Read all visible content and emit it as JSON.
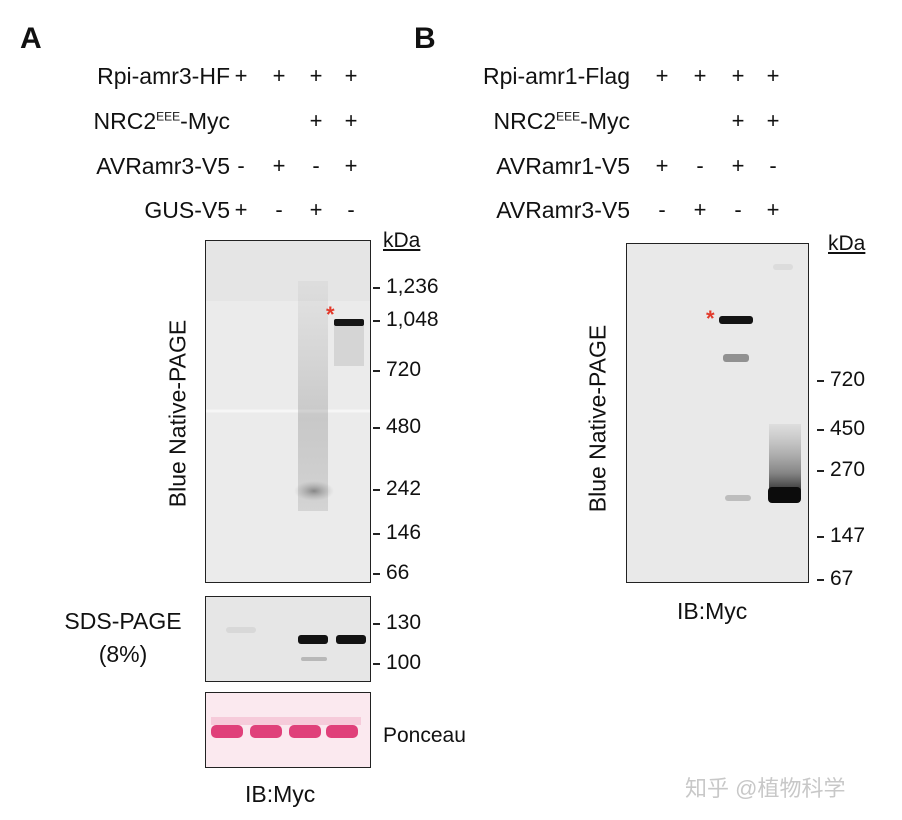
{
  "panelA": {
    "letter": "A",
    "rows": [
      {
        "label": "Rpi-amr3-HF",
        "signs": [
          "+",
          "+",
          "+",
          "+"
        ]
      },
      {
        "label_main": "NRC2",
        "label_sup": "EEE",
        "label_tail": "-Myc",
        "signs": [
          "",
          "",
          "+",
          "+"
        ]
      },
      {
        "label": "AVRamr3-V5",
        "signs": [
          "-",
          "+",
          "-",
          "+"
        ]
      },
      {
        "label": "GUS-V5",
        "signs": [
          "+",
          "-",
          "+",
          "-"
        ]
      }
    ],
    "kda": "kDa",
    "native_markers": [
      "1,236",
      "1,048",
      "720",
      "480",
      "242",
      "146",
      "66"
    ],
    "native_label": "Blue Native-PAGE",
    "sds_label_line1": "SDS-PAGE",
    "sds_label_line2": "(8%)",
    "sds_markers": [
      "130",
      "100"
    ],
    "ponceau_label": "Ponceau",
    "ib_label": "IB:Myc",
    "star": "*"
  },
  "panelB": {
    "letter": "B",
    "rows": [
      {
        "label": "Rpi-amr1-Flag",
        "signs": [
          "+",
          "+",
          "+",
          "+"
        ]
      },
      {
        "label_main": "NRC2",
        "label_sup": "EEE",
        "label_tail": "-Myc",
        "signs": [
          "",
          "",
          "+",
          "+"
        ]
      },
      {
        "label": "AVRamr1-V5",
        "signs": [
          "+",
          "-",
          "+",
          "-"
        ]
      },
      {
        "label": "AVRamr3-V5",
        "signs": [
          "-",
          "+",
          "-",
          "+"
        ]
      }
    ],
    "kda": "kDa",
    "native_markers": [
      "720",
      "450",
      "270",
      "147",
      "67"
    ],
    "native_label": "Blue Native-PAGE",
    "ib_label": "IB:Myc",
    "star": "*"
  },
  "watermark": "知乎 @植物科学",
  "colors": {
    "star": "#e23a2b",
    "ponceau": "#e0407a"
  }
}
